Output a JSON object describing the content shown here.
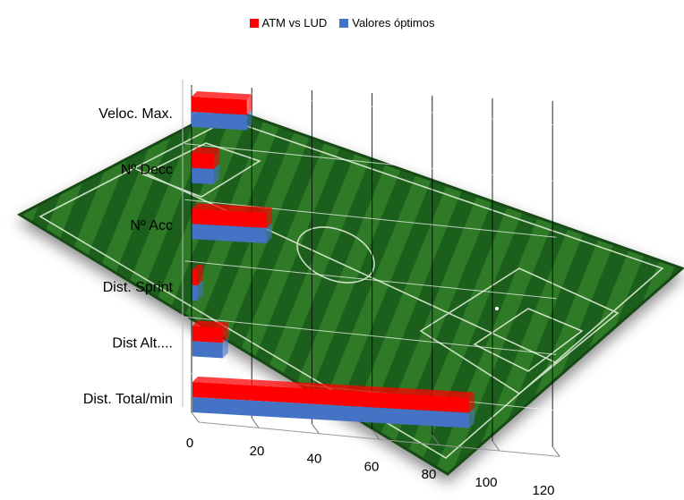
{
  "legend": {
    "series0": "ATM vs LUD",
    "series1": "Valores óptimos"
  },
  "colors": {
    "series0": "#ff0000",
    "series1": "#4472c4",
    "pitch_dark": "#1f5b1d",
    "pitch_light": "#2f7a2a"
  },
  "chart_data": {
    "type": "bar",
    "orientation": "horizontal",
    "style": "3d-clustered",
    "background": "soccer-pitch-image",
    "categories": [
      "Veloc. Max.",
      "Nº Decc",
      "Nº Acc",
      "Dist. Sprint",
      "Dist Alt....",
      "Dist. Total/min"
    ],
    "series": [
      {
        "name": "ATM vs LUD",
        "values": [
          20,
          8,
          27,
          2,
          11,
          100
        ]
      },
      {
        "name": "Valores óptimos",
        "values": [
          20,
          8,
          27,
          2,
          11,
          100
        ]
      }
    ],
    "xlim": [
      0,
      120
    ],
    "xticks": [
      "0",
      "20",
      "40",
      "60",
      "80",
      "100",
      "120"
    ],
    "grid": true,
    "legend_position": "top"
  }
}
